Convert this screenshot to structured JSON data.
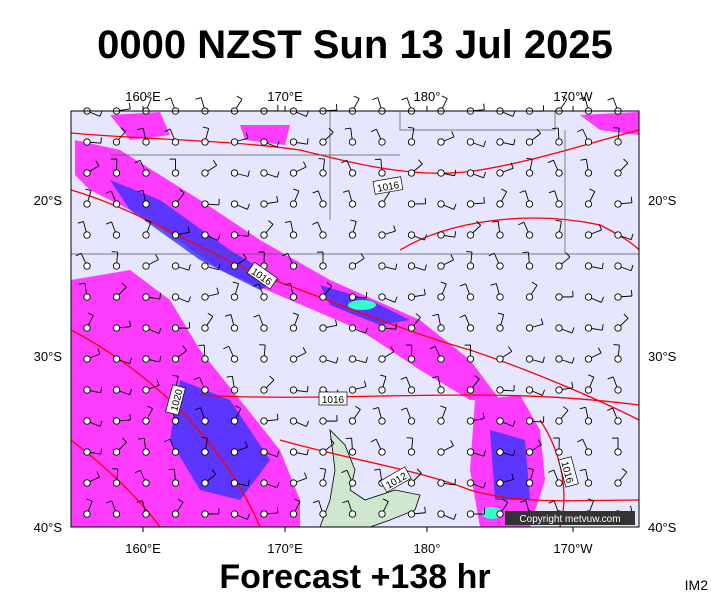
{
  "title": "0000 NZST Sun 13 Jul 2025",
  "footer": "Forecast +138 hr",
  "code": "IM2",
  "copyright": "Copyright metvuw.com",
  "map": {
    "lon_labels": [
      "160°E",
      "170°E",
      "180°",
      "170°W"
    ],
    "lat_labels": [
      "20°S",
      "30°S",
      "40°S"
    ],
    "isobar_labels": [
      "1016",
      "1016",
      "1020",
      "1016",
      "1012",
      "1016"
    ]
  }
}
